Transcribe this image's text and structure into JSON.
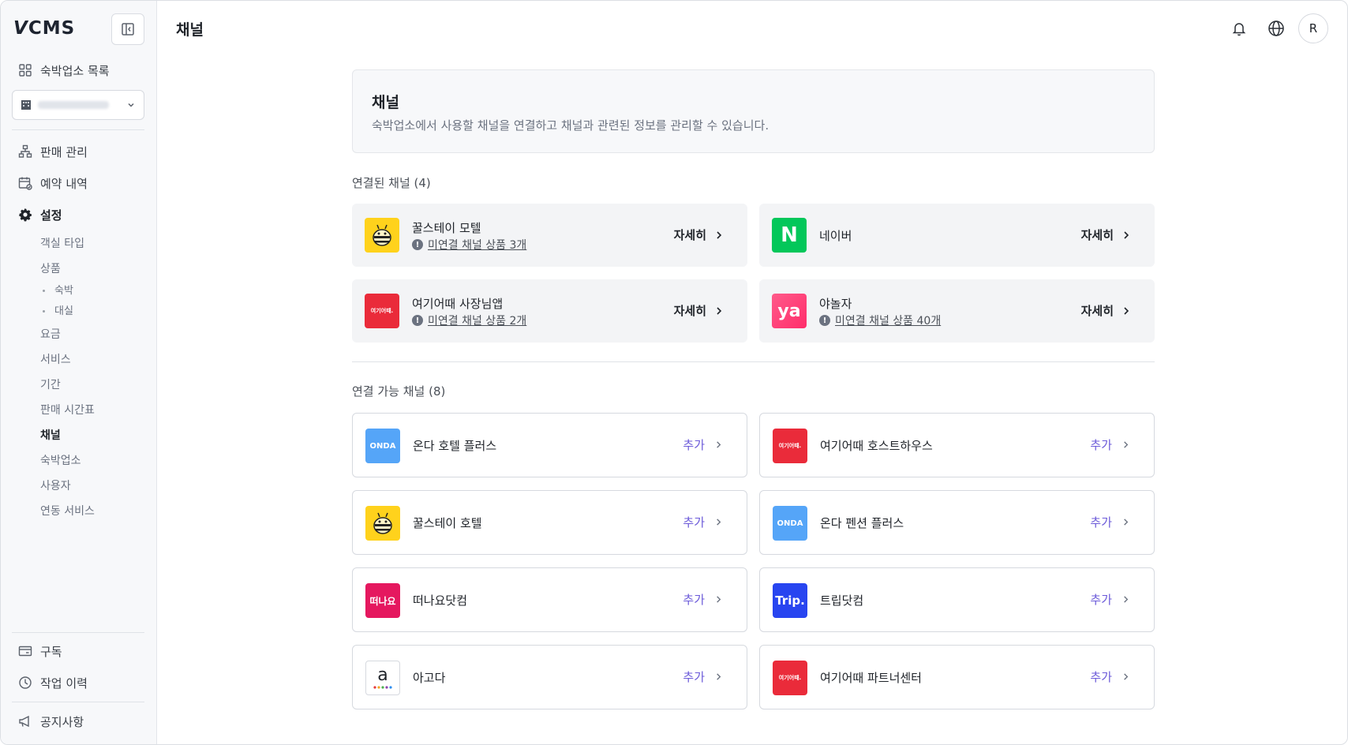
{
  "app": {
    "logo": "VCMS",
    "logo_v": "V",
    "logo_rest": "CMS"
  },
  "sidebar": {
    "property_list": "숙박업소 목록",
    "property_select": {
      "value": ""
    },
    "items": [
      {
        "label": "판매 관리"
      },
      {
        "label": "예약 내역"
      },
      {
        "label": "설정"
      }
    ],
    "settings_sub": [
      {
        "label": "객실 타입"
      },
      {
        "label": "상품"
      },
      {
        "label": "숙박"
      },
      {
        "label": "대실"
      },
      {
        "label": "요금"
      },
      {
        "label": "서비스"
      },
      {
        "label": "기간"
      },
      {
        "label": "판매 시간표"
      },
      {
        "label": "채널"
      },
      {
        "label": "숙박업소"
      },
      {
        "label": "사용자"
      },
      {
        "label": "연동 서비스"
      }
    ],
    "bottom": [
      {
        "label": "구독"
      },
      {
        "label": "작업 이력"
      },
      {
        "label": "공지사항"
      }
    ]
  },
  "header": {
    "title": "채널",
    "avatar_initial": "R"
  },
  "intro": {
    "title": "채널",
    "description": "숙박업소에서 사용할 채널을 연결하고 채널과 관련된 정보를 관리할 수 있습니다."
  },
  "connected": {
    "title": "연결된 채널 (4)",
    "detail_label": "자세히",
    "channels": [
      {
        "name": "꿀스테이 모텔",
        "warning": "미연결 채널 상품 3개",
        "logo_text": ""
      },
      {
        "name": "네이버",
        "warning": "",
        "logo_text": "N"
      },
      {
        "name": "여기어때 사장님앱",
        "warning": "미연결 채널 상품 2개",
        "logo_text": "여기어때."
      },
      {
        "name": "야놀자",
        "warning": "미연결 채널 상품 40개",
        "logo_text": "ya"
      }
    ]
  },
  "available": {
    "title": "연결 가능 채널 (8)",
    "add_label": "추가",
    "channels": [
      {
        "name": "온다 호텔 플러스",
        "logo_text": "ONDA"
      },
      {
        "name": "여기어때 호스트하우스",
        "logo_text": "여기어때."
      },
      {
        "name": "꿀스테이 호텔",
        "logo_text": ""
      },
      {
        "name": "온다 펜션 플러스",
        "logo_text": "ONDA"
      },
      {
        "name": "떠나요닷컴",
        "logo_text": "떠나요"
      },
      {
        "name": "트립닷컴",
        "logo_text": "Trip."
      },
      {
        "name": "아고다",
        "logo_text": "a"
      },
      {
        "name": "여기어때 파트너센터",
        "logo_text": "여기어때."
      }
    ]
  },
  "colors": {
    "accent": "#6b5ad9",
    "naver": "#03c75a",
    "yeogi": "#ea2b3a",
    "yanolja": "#ff3478",
    "onda": "#55a5f8",
    "ggul": "#ffd21c",
    "ddnayo": "#e5185f",
    "trip": "#2845f0"
  }
}
